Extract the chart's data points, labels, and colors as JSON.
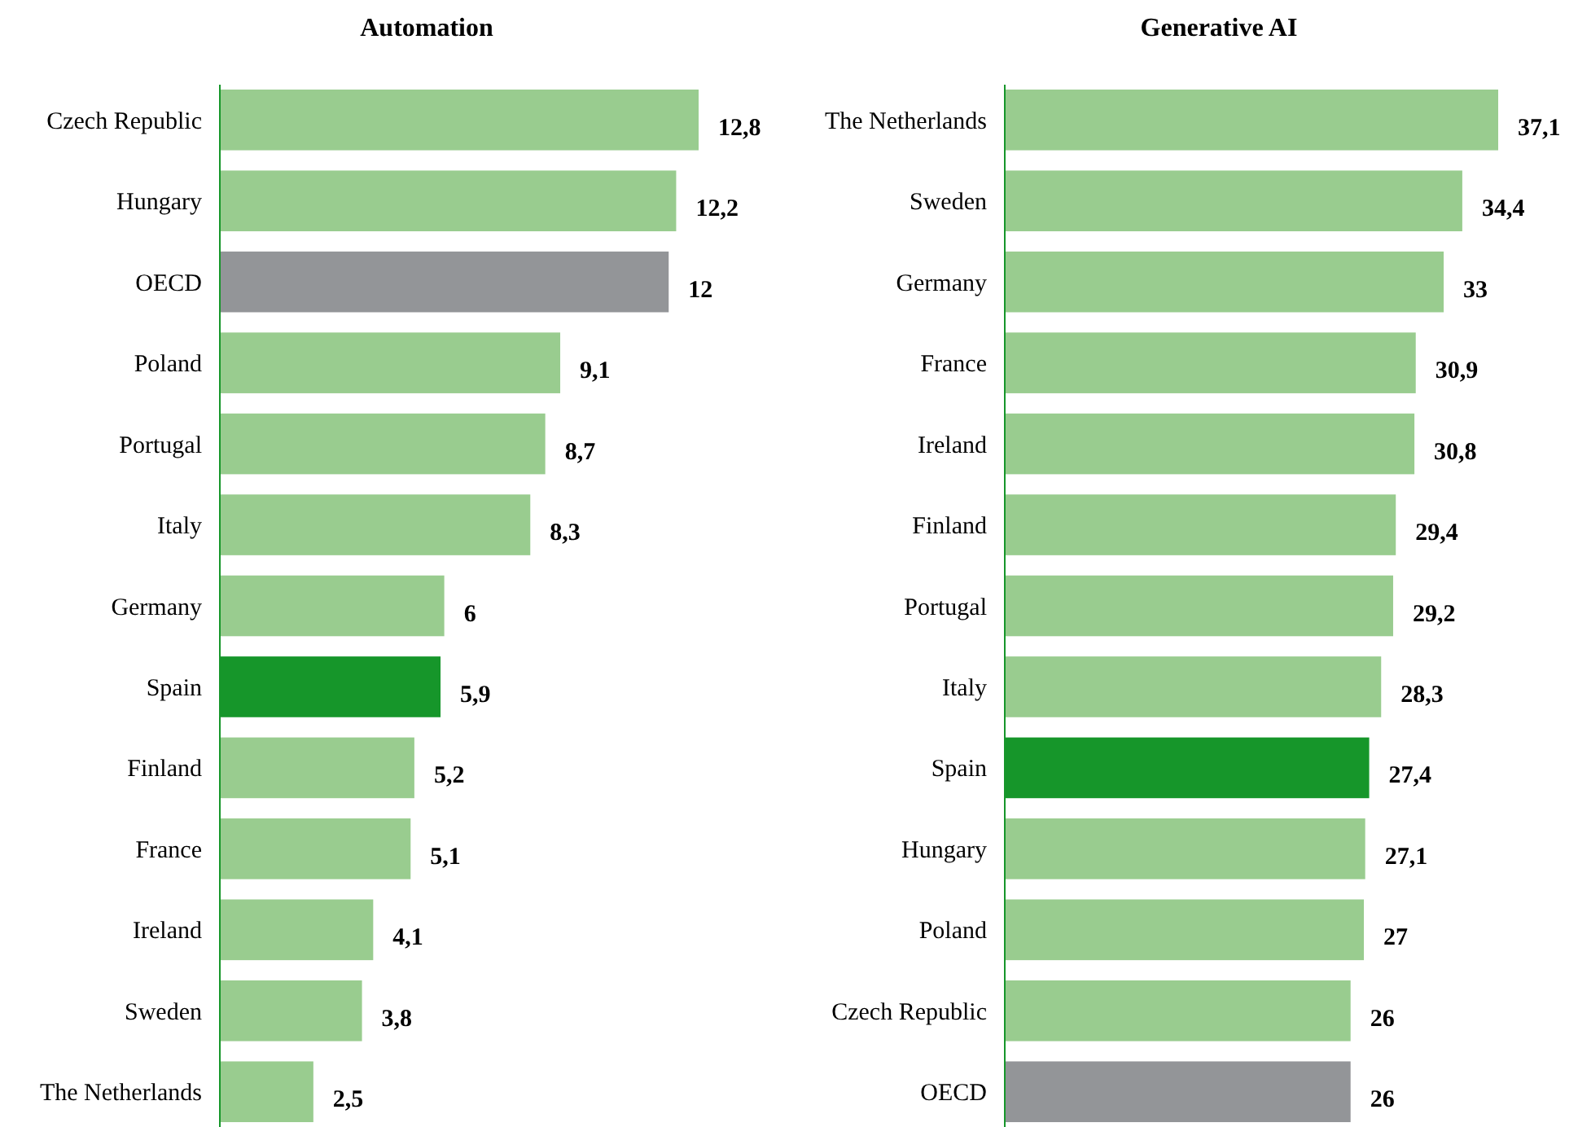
{
  "chart_data": [
    {
      "type": "bar",
      "orientation": "horizontal",
      "title": "Automation",
      "categories": [
        "Czech Republic",
        "Hungary",
        "OECD",
        "Poland",
        "Portugal",
        "Italy",
        "Germany",
        "Spain",
        "Finland",
        "France",
        "Ireland",
        "Sweden",
        "The Netherlands"
      ],
      "values": [
        12.8,
        12.2,
        12,
        9.1,
        8.7,
        8.3,
        6,
        5.9,
        5.2,
        5.1,
        4.1,
        3.8,
        2.5
      ],
      "value_labels": [
        "12,8",
        "12,2",
        "12",
        "9,1",
        "8,7",
        "8,3",
        "6",
        "5,9",
        "5,2",
        "5,1",
        "4,1",
        "3,8",
        "2,5"
      ],
      "colors": [
        "#99cc8f",
        "#99cc8f",
        "#939598",
        "#99cc8f",
        "#99cc8f",
        "#99cc8f",
        "#99cc8f",
        "#16962a",
        "#99cc8f",
        "#99cc8f",
        "#99cc8f",
        "#99cc8f",
        "#99cc8f"
      ],
      "tick_labels": "y"
    },
    {
      "type": "bar",
      "orientation": "horizontal",
      "title": "Generative AI",
      "categories": [
        "The Netherlands",
        "Sweden",
        "Germany",
        "France",
        "Ireland",
        "Finland",
        "Portugal",
        "Italy",
        "Spain",
        "Hungary",
        "Poland",
        "Czech Republic",
        "OECD"
      ],
      "values": [
        37.1,
        34.4,
        33,
        30.9,
        30.8,
        29.4,
        29.2,
        28.3,
        27.4,
        27.1,
        27,
        26,
        26
      ],
      "value_labels": [
        "37,1",
        "34,4",
        "33",
        "30,9",
        "30,8",
        "29,4",
        "29,2",
        "28,3",
        "27,4",
        "27,1",
        "27",
        "26",
        "26"
      ],
      "colors": [
        "#99cc8f",
        "#99cc8f",
        "#99cc8f",
        "#99cc8f",
        "#99cc8f",
        "#99cc8f",
        "#99cc8f",
        "#99cc8f",
        "#16962a",
        "#99cc8f",
        "#99cc8f",
        "#99cc8f",
        "#939598"
      ],
      "tick_labels": "y"
    }
  ]
}
